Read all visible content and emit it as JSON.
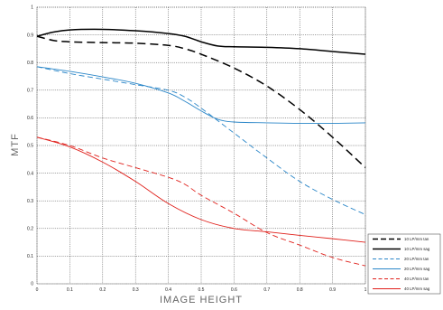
{
  "chart_data": {
    "type": "line",
    "xlabel": "IMAGE HEIGHT",
    "ylabel": "MTF",
    "xlim": [
      0,
      1
    ],
    "ylim": [
      0,
      1
    ],
    "grid": true,
    "legend_position": "bottom-right",
    "x_ticks": [
      "0",
      "0.1",
      "0.2",
      "0.3",
      "0.4",
      "0.5",
      "0.6",
      "0.7",
      "0.8",
      "0.9",
      "1"
    ],
    "y_ticks": [
      "0",
      "0.1",
      "0.2",
      "0.3",
      "0.4",
      "0.5",
      "0.6",
      "0.7",
      "0.8",
      "0.9",
      "1"
    ],
    "series": [
      {
        "name": "10 LP/mm tan",
        "color": "#000000",
        "dashed": true,
        "x": [
          0,
          0.05,
          0.1,
          0.2,
          0.3,
          0.4,
          0.45,
          0.5,
          0.6,
          0.7,
          0.8,
          0.9,
          1.0
        ],
        "y": [
          0.895,
          0.88,
          0.875,
          0.872,
          0.87,
          0.862,
          0.85,
          0.83,
          0.78,
          0.715,
          0.63,
          0.53,
          0.42
        ]
      },
      {
        "name": "10 LP/mm sag",
        "color": "#000000",
        "dashed": false,
        "x": [
          0,
          0.05,
          0.1,
          0.2,
          0.3,
          0.4,
          0.45,
          0.5,
          0.55,
          0.6,
          0.7,
          0.8,
          0.9,
          1.0
        ],
        "y": [
          0.895,
          0.91,
          0.918,
          0.92,
          0.915,
          0.905,
          0.895,
          0.875,
          0.86,
          0.857,
          0.855,
          0.85,
          0.84,
          0.83
        ]
      },
      {
        "name": "20 LP/mm tan",
        "color": "#2a86c8",
        "dashed": true,
        "x": [
          0,
          0.1,
          0.2,
          0.3,
          0.4,
          0.45,
          0.5,
          0.6,
          0.7,
          0.8,
          0.9,
          1.0
        ],
        "y": [
          0.785,
          0.76,
          0.74,
          0.72,
          0.7,
          0.675,
          0.635,
          0.545,
          0.455,
          0.37,
          0.305,
          0.25
        ]
      },
      {
        "name": "20 LP/mm sag",
        "color": "#2a86c8",
        "dashed": false,
        "x": [
          0,
          0.1,
          0.2,
          0.3,
          0.4,
          0.45,
          0.5,
          0.55,
          0.6,
          0.7,
          0.8,
          0.9,
          1.0
        ],
        "y": [
          0.785,
          0.768,
          0.748,
          0.725,
          0.69,
          0.66,
          0.625,
          0.595,
          0.585,
          0.582,
          0.58,
          0.58,
          0.582
        ]
      },
      {
        "name": "40 LP/mm tan",
        "color": "#e0201b",
        "dashed": true,
        "x": [
          0,
          0.1,
          0.2,
          0.3,
          0.4,
          0.45,
          0.5,
          0.6,
          0.7,
          0.8,
          0.9,
          1.0
        ],
        "y": [
          0.53,
          0.5,
          0.455,
          0.42,
          0.385,
          0.36,
          0.32,
          0.255,
          0.185,
          0.14,
          0.095,
          0.065
        ]
      },
      {
        "name": "40 LP/mm sag",
        "color": "#e0201b",
        "dashed": false,
        "x": [
          0,
          0.1,
          0.2,
          0.3,
          0.4,
          0.5,
          0.6,
          0.7,
          0.8,
          0.9,
          1.0
        ],
        "y": [
          0.53,
          0.495,
          0.44,
          0.37,
          0.29,
          0.232,
          0.2,
          0.188,
          0.175,
          0.163,
          0.15
        ]
      }
    ]
  }
}
